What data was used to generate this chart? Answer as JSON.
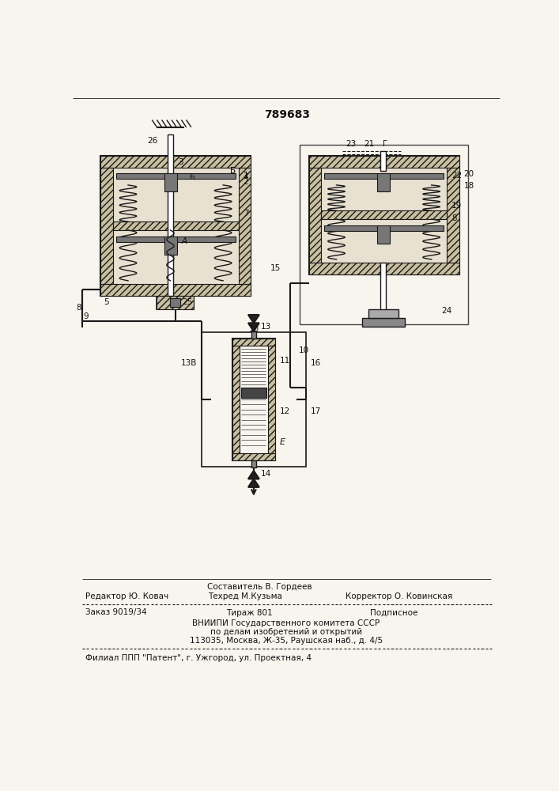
{
  "patent_number": "789683",
  "bg_color": "#f8f5ef",
  "line_color": "#1a1a1a",
  "text_color": "#111111",
  "hatch_fill": "#c8bfa0",
  "white": "#ffffff",
  "gray_dark": "#555555",
  "gray_mid": "#888888",
  "gray_light": "#cccccc",
  "footer_composer": "Составитель В. Гордеев",
  "footer_editor": "Редактор Ю. Ковач",
  "footer_techred": "Техред М.Кузьма",
  "footer_corrector": "Корректор О. Ковинская",
  "footer_order": "Заказ 9019/34",
  "footer_tirazh": "Тираж 801",
  "footer_podpisnoe": "Подписное",
  "footer_vniip1": "ВНИИПИ Государственного комитета СССР",
  "footer_vniip2": "по делам изобретений и открытий",
  "footer_vniip3": "113035, Москва, Ж-35, Раушская наб., д. 4/5",
  "footer_filial": "Филиал ППП \"Патент\", г. Ужгород, ул. Проектная, 4"
}
